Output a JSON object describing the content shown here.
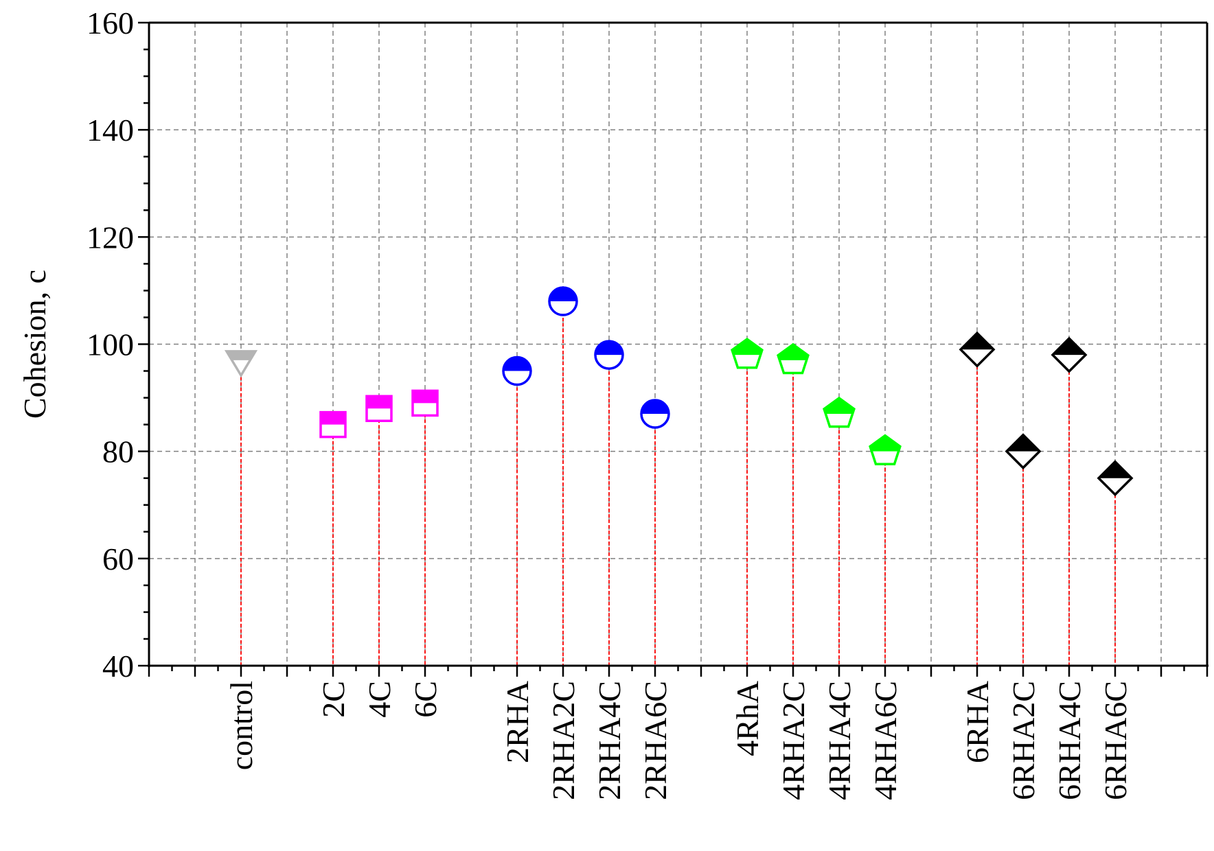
{
  "chart_data": {
    "type": "scatter",
    "ylabel": "Cohesion, c",
    "xlabel": "",
    "ylim": [
      40,
      160
    ],
    "y_ticks": [
      "40",
      "60",
      "80",
      "100",
      "120",
      "140",
      "160"
    ],
    "grid": true,
    "categories": [
      "control",
      "2C",
      "4C",
      "6C",
      "2RHA",
      "2RHA2C",
      "2RHA4C",
      "2RHA6C",
      "4RhA",
      "4RHA2C",
      "4RHA4C",
      "4RHA6C",
      "6RHA",
      "6RHA2C",
      "6RHA4C",
      "6RHA6C"
    ],
    "category_slots": [
      2,
      4,
      5,
      6,
      8,
      9,
      10,
      11,
      13,
      14,
      15,
      16,
      18,
      19,
      20,
      21
    ],
    "slot_count": 23,
    "values": [
      97,
      85,
      88,
      89,
      95,
      108,
      98,
      87,
      98,
      97,
      87,
      80,
      99,
      80,
      98,
      75
    ],
    "groups": [
      {
        "members": [
          0
        ],
        "marker": "triangle-down",
        "color": "#b4b4b4"
      },
      {
        "members": [
          1,
          2,
          3
        ],
        "marker": "square",
        "color": "#ff00ff"
      },
      {
        "members": [
          4,
          5,
          6,
          7
        ],
        "marker": "circle",
        "color": "#0000ff"
      },
      {
        "members": [
          8,
          9,
          10,
          11
        ],
        "marker": "pentagon",
        "color": "#00ff00"
      },
      {
        "members": [
          12,
          13,
          14,
          15
        ],
        "marker": "diamond",
        "color": "#000000"
      }
    ],
    "drop_line_color": "#ff0000"
  }
}
